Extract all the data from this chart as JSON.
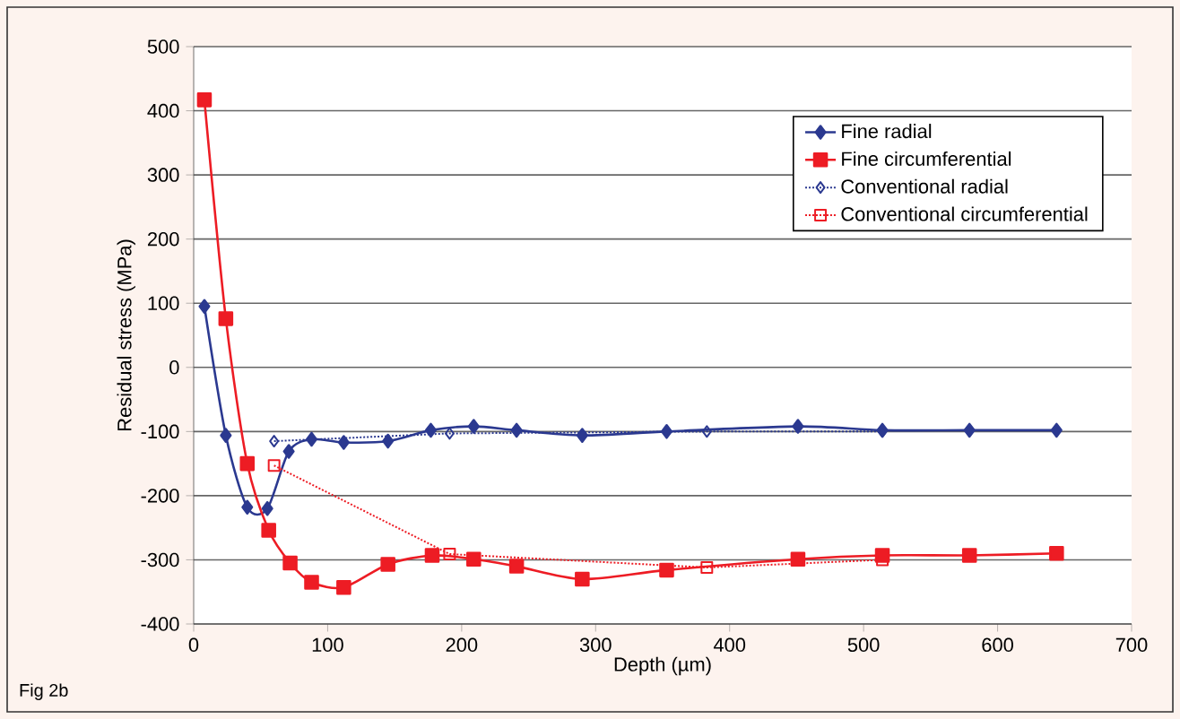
{
  "chart_data": {
    "type": "line",
    "xlabel": "Depth (µm)",
    "ylabel": "Residual stress (MPa)",
    "annotations": [
      "Fig 2b"
    ],
    "xlim": [
      0,
      700
    ],
    "xticks": [
      0,
      100,
      200,
      300,
      400,
      500,
      600,
      700
    ],
    "ylim": [
      -400,
      500
    ],
    "yticks": [
      -400,
      -300,
      -200,
      -100,
      0,
      100,
      200,
      300,
      400,
      500
    ],
    "grid": "y",
    "legend": "top right",
    "series": [
      {
        "name": "Fine radial",
        "color": "#2b3990",
        "marker": "diamond",
        "line_style": "solid",
        "x": [
          8,
          24,
          40,
          55,
          71,
          88,
          112,
          145,
          177,
          209,
          241,
          290,
          353,
          451,
          514,
          579,
          644
        ],
        "values": [
          95,
          -106,
          -218,
          -220,
          -131,
          -112,
          -117,
          -115,
          -98,
          -92,
          -98,
          -106,
          -100,
          -92,
          -98,
          -98,
          -98
        ]
      },
      {
        "name": "Fine circumferential",
        "color": "#ed1c24",
        "marker": "square",
        "line_style": "solid",
        "x": [
          8,
          24,
          40,
          56,
          72,
          88,
          112,
          145,
          178,
          209,
          241,
          290,
          353,
          451,
          514,
          579,
          644
        ],
        "values": [
          417,
          76,
          -150,
          -254,
          -305,
          -335,
          -343,
          -307,
          -293,
          -299,
          -310,
          -330,
          -316,
          -299,
          -293,
          -293,
          -290
        ]
      },
      {
        "name": "Conventional radial",
        "color": "#2b3990",
        "marker": "diamond",
        "line_style": "dotted",
        "x": [
          60,
          191,
          383,
          514
        ],
        "values": [
          -115,
          -103,
          -100,
          -100
        ]
      },
      {
        "name": "Conventional circumferential",
        "color": "#ed1c24",
        "marker": "square",
        "line_style": "dotted",
        "x": [
          60,
          191,
          383,
          514
        ],
        "values": [
          -153,
          -291,
          -312,
          -300
        ]
      }
    ]
  }
}
